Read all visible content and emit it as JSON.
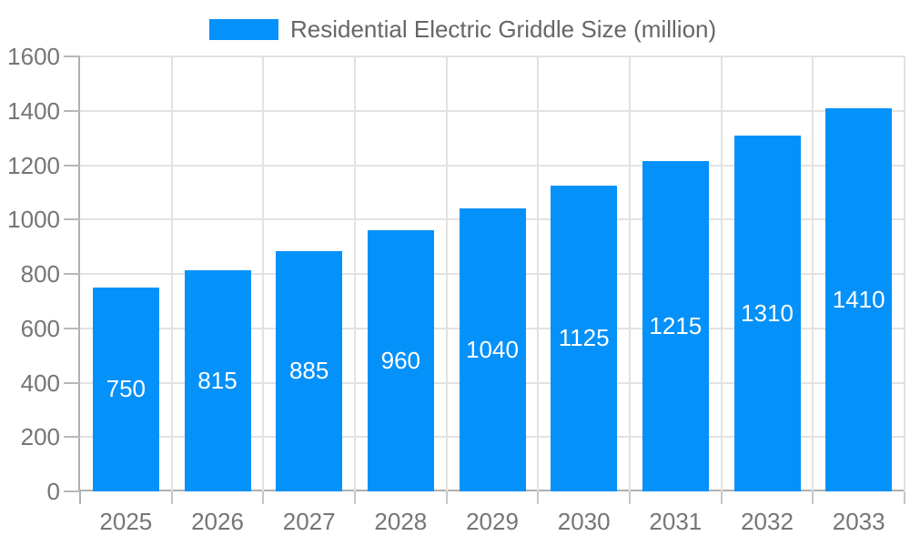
{
  "chart_data": {
    "type": "bar",
    "title": "Residential Electric Griddle Size (million)",
    "categories": [
      "2025",
      "2026",
      "2027",
      "2028",
      "2029",
      "2030",
      "2031",
      "2032",
      "2033"
    ],
    "values": [
      750,
      815,
      885,
      960,
      1040,
      1125,
      1215,
      1310,
      1410
    ],
    "xlabel": "",
    "ylabel": "",
    "ylim": [
      0,
      1600
    ],
    "ytick_step": 200,
    "grid": true,
    "legend_position": "top",
    "bar_color": "#0591fa",
    "bar_value_label_color": "#ffffff",
    "grid_color": "#e2e2e2",
    "axis_line_color": "#b0b0b0",
    "tick_text_color": "#757575",
    "legend_text_color": "#666666"
  }
}
